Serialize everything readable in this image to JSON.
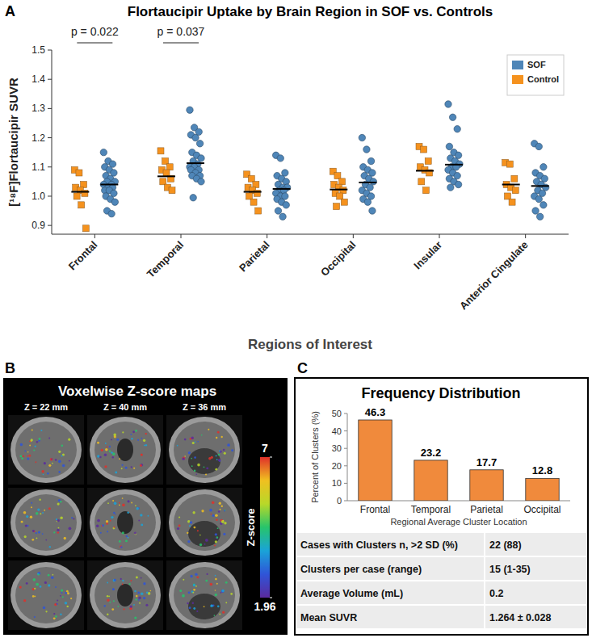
{
  "chart_data": [
    {
      "panel": "A",
      "type": "scatter",
      "title": "Flortaucipir Uptake by Brain Region in SOF vs. Controls",
      "x_label": "Regions of Interest",
      "y_label": "[¹⁸F]Flortaucipir SUVR",
      "categories": [
        "Frontal",
        "Temporal",
        "Parietal",
        "Occipital",
        "Insular",
        "Anterior Cingulate"
      ],
      "series": [
        {
          "name": "SOF",
          "color": "#4f86b8",
          "marker": "circle",
          "values": [
            [
              1.15,
              1.12,
              1.11,
              1.1,
              1.09,
              1.08,
              1.07,
              1.06,
              1.05,
              1.05,
              1.04,
              1.04,
              1.03,
              1.03,
              1.02,
              1.02,
              1.01,
              1.0,
              0.99,
              0.98,
              0.95,
              0.94
            ],
            [
              1.295,
              1.235,
              1.22,
              1.21,
              1.2,
              1.18,
              1.15,
              1.14,
              1.13,
              1.12,
              1.11,
              1.1,
              1.1,
              1.09,
              1.09,
              1.08,
              1.07,
              1.07,
              1.06,
              1.05,
              0.995
            ],
            [
              1.14,
              1.13,
              1.08,
              1.07,
              1.06,
              1.05,
              1.04,
              1.03,
              1.03,
              1.02,
              1.02,
              1.01,
              1.0,
              1.0,
              0.99,
              0.98,
              0.97,
              0.95,
              0.93
            ],
            [
              1.2,
              1.16,
              1.12,
              1.1,
              1.09,
              1.08,
              1.07,
              1.06,
              1.05,
              1.04,
              1.03,
              1.02,
              1.01,
              1.0,
              0.99,
              0.98,
              0.95
            ],
            [
              1.315,
              1.27,
              1.23,
              1.17,
              1.15,
              1.14,
              1.13,
              1.12,
              1.11,
              1.1,
              1.1,
              1.09,
              1.08,
              1.07,
              1.06,
              1.05,
              1.04,
              1.03
            ],
            [
              1.18,
              1.17,
              1.1,
              1.08,
              1.07,
              1.06,
              1.05,
              1.04,
              1.03,
              1.02,
              1.01,
              1.0,
              0.99,
              0.97,
              0.95,
              0.93
            ]
          ],
          "means": [
            1.04,
            1.113,
            1.025,
            1.047,
            1.108,
            1.035
          ]
        },
        {
          "name": "Control",
          "color": "#f5921e",
          "marker": "square",
          "values": [
            [
              1.09,
              1.08,
              1.04,
              1.03,
              1.02,
              1.01,
              1.0,
              0.97,
              0.89
            ],
            [
              1.155,
              1.12,
              1.1,
              1.09,
              1.08,
              1.06,
              1.05,
              1.03,
              1.02
            ],
            [
              1.075,
              1.06,
              1.04,
              1.03,
              1.02,
              1.01,
              1.0,
              0.98,
              0.95
            ],
            [
              1.085,
              1.07,
              1.05,
              1.04,
              1.03,
              1.02,
              1.01,
              1.0,
              0.98,
              0.965
            ],
            [
              1.17,
              1.16,
              1.12,
              1.1,
              1.09,
              1.08,
              1.05,
              1.02
            ],
            [
              1.115,
              1.11,
              1.06,
              1.04,
              1.03,
              1.02,
              1.0,
              0.98
            ]
          ],
          "means": [
            1.015,
            1.068,
            1.015,
            1.023,
            1.087,
            1.04
          ]
        }
      ],
      "ylim": [
        0.87,
        1.5
      ],
      "yticks": [
        0.9,
        {
          "value": 1,
          "label": "1.0"
        },
        1.1,
        1.2,
        1.3,
        1.4,
        1.5
      ],
      "legend": "top-right",
      "annotations": [
        {
          "text": "p = 0.022",
          "category": "Frontal"
        },
        {
          "text": "p = 0.037",
          "category": "Temporal"
        }
      ]
    },
    {
      "panel": "C",
      "type": "bar",
      "title": "Frequency Distribution",
      "x_label": "Regional Average Cluster Location",
      "y_label": "Percent of Clusters (%)",
      "categories": [
        "Frontal",
        "Temporal",
        "Parietal",
        "Occipital"
      ],
      "values": [
        46.3,
        23.2,
        17.7,
        12.8
      ],
      "color": "#f08a3c",
      "ylim": [
        0,
        50
      ],
      "yticks": [
        0,
        10,
        20,
        30,
        40,
        50
      ],
      "data_labels": true
    }
  ],
  "panel_b": {
    "panel": "B",
    "title": "Voxelwise Z-score maps",
    "slices": [
      "Z = 22 mm",
      "Z = 40 mm",
      "Z = 36 mm"
    ],
    "colorbar": {
      "label": "Z-score",
      "range": [
        1.96,
        7
      ],
      "ticks": [
        1.96,
        7
      ]
    }
  },
  "table": {
    "rows": [
      [
        "Cases with Clusters n, >2 SD (%)",
        "22 (88)"
      ],
      [
        "Clusters per case (range)",
        "15 (1-35)"
      ],
      [
        "Average Volume (mL)",
        "0.2"
      ],
      [
        "Mean SUVR",
        "1.264 ± 0.028"
      ]
    ]
  }
}
